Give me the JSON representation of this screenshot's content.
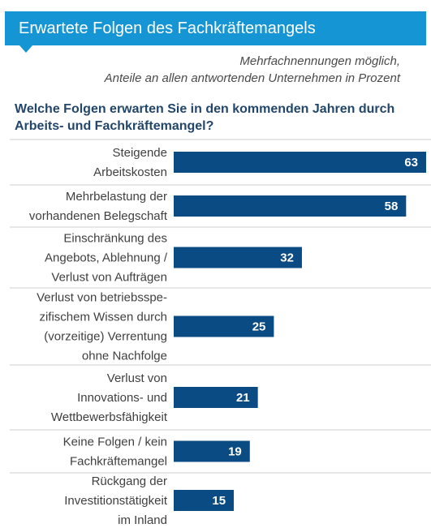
{
  "header": {
    "title": "Erwartete Folgen des Fachkräftemangels",
    "subtitle_lines": [
      "Mehrfachnennungen möglich,",
      "Anteile an allen antwortenden Unternehmen in Prozent"
    ],
    "question_lines": [
      "Welche Folgen erwarten Sie in den kommenden Jahren durch",
      "Arbeits- und Fachkräftemangel?"
    ]
  },
  "colors": {
    "title_background": "#1595d3",
    "bar": "#0b4b83",
    "question_text": "#23466b",
    "divider": "#cfcfcf"
  },
  "chart_data": {
    "type": "bar",
    "orientation": "horizontal",
    "grid": false,
    "legend": "none",
    "xlim": [
      0,
      63
    ],
    "categories": [
      "Steigende Arbeitskosten",
      "Mehrbelastung der vorhandenen Belegschaft",
      "Einschränkung des Angebots, Ablehnung / Verlust von Aufträgen",
      "Verlust von betriebsspezifischem Wissen durch (vorzeitige) Verrentung ohne Nachfolge",
      "Verlust von Innovations- und Wettbewerbsfähigkeit",
      "Keine Folgen / kein Fachkräftemangel",
      "Rückgang der Investitionstätigkeit im Inland"
    ],
    "category_label_lines": [
      [
        "Steigende",
        "Arbeitskosten"
      ],
      [
        "Mehrbelastung der",
        "vorhandenen Belegschaft"
      ],
      [
        "Einschränkung des",
        "Angebots, Ablehnung /",
        "Verlust von Aufträgen"
      ],
      [
        "Verlust von betriebsspe-",
        "zifischem Wissen durch",
        "(vorzeitige) Verrentung",
        "ohne Nachfolge"
      ],
      [
        "Verlust von",
        "Innovations- und",
        "Wettbewerbsfähigkeit"
      ],
      [
        "Keine Folgen / kein",
        "Fachkräftemangel"
      ],
      [
        "Rückgang der",
        "Investitionstätigkeit",
        "im Inland"
      ]
    ],
    "values": [
      63,
      58,
      32,
      25,
      21,
      19,
      15
    ]
  }
}
